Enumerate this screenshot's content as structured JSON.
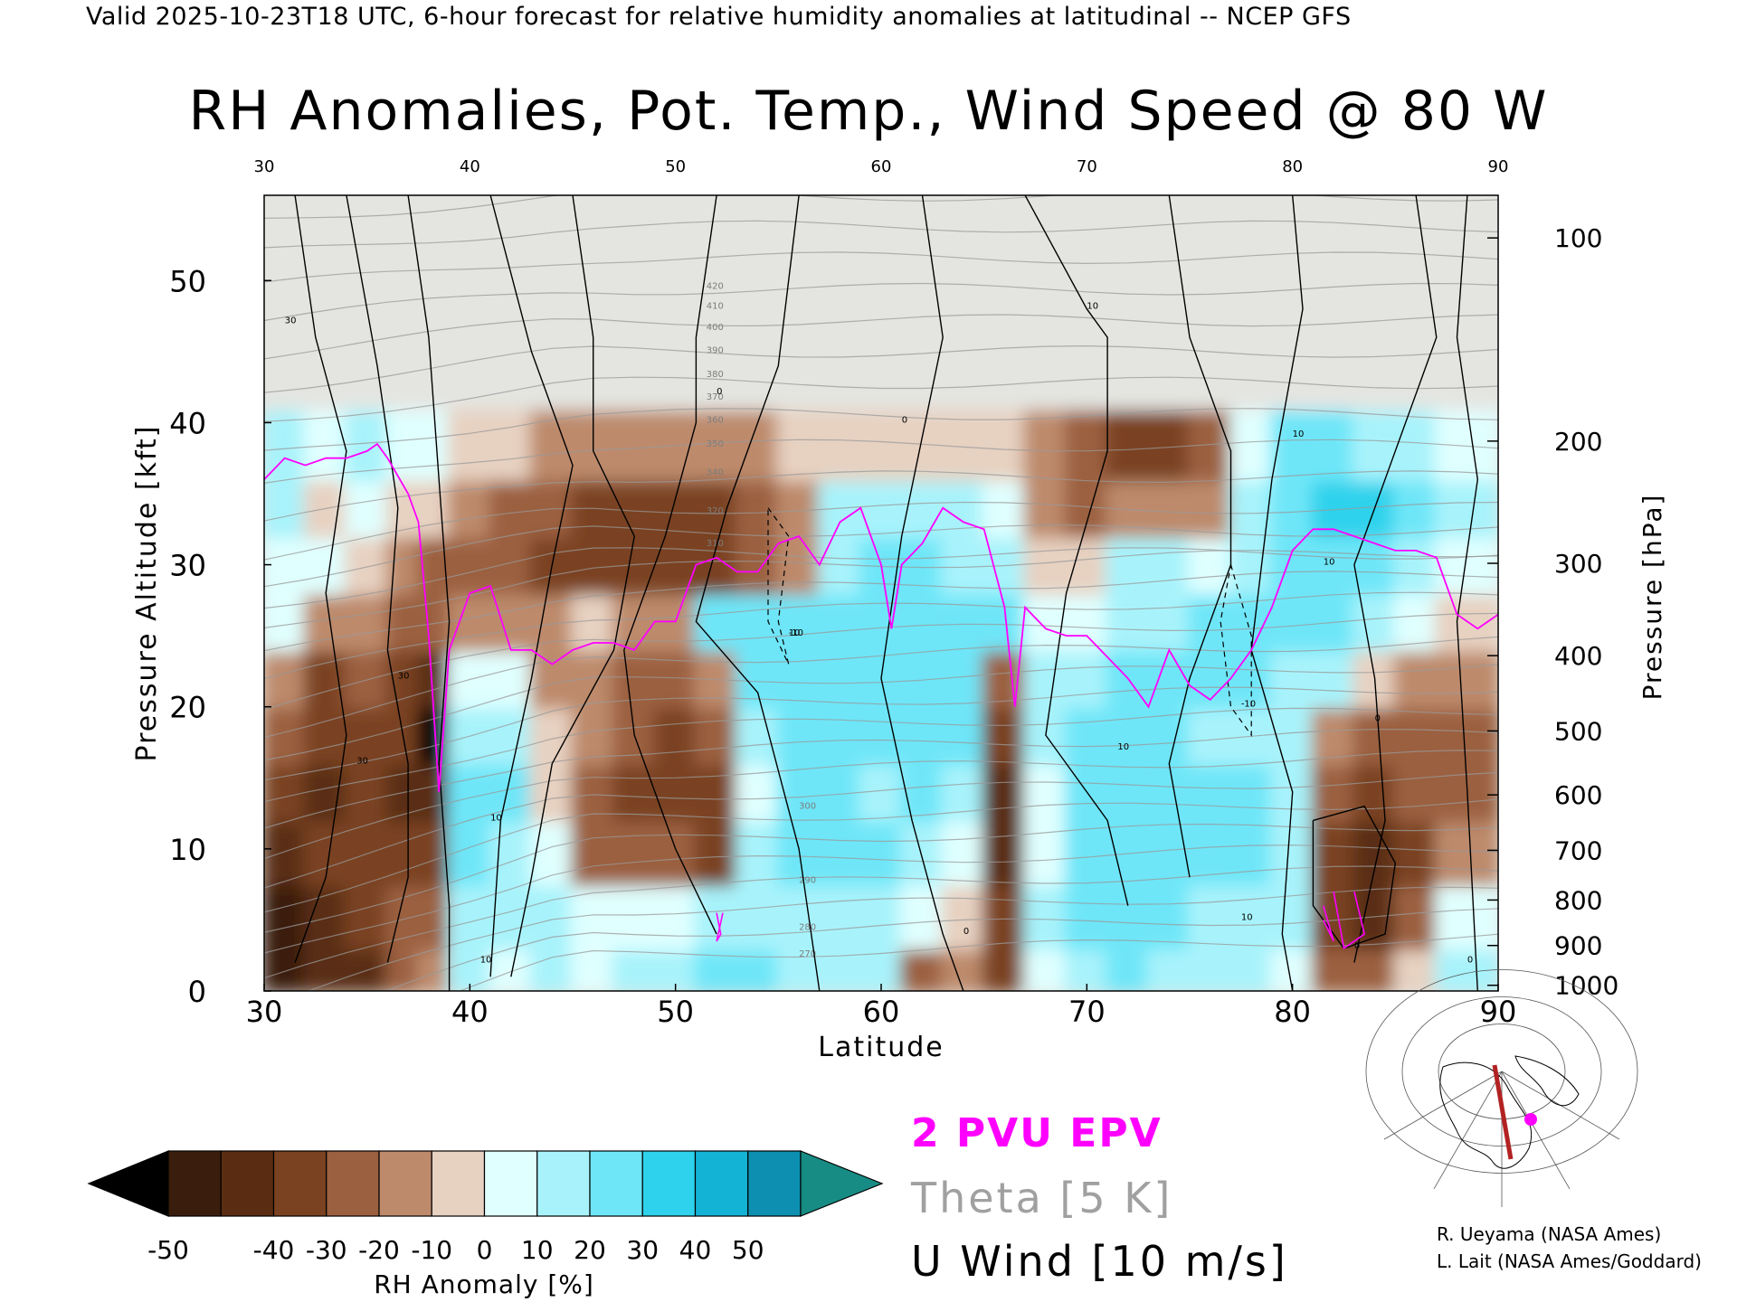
{
  "header": {
    "valid_line": "Valid 2025-10-23T18 UTC, 6-hour forecast for relative humidity anomalies at latitudinal -- NCEP GFS",
    "title": "RH Anomalies, Pot. Temp., Wind Speed @ 80 W"
  },
  "chart_data": {
    "type": "heatmap",
    "title": "RH Anomalies, Pot. Temp., Wind Speed @ 80 W",
    "xlabel": "Latitude",
    "ylabel": "Pressure Altitude [kft]",
    "y2label": "Pressure [hPa]",
    "xlim": [
      30,
      90
    ],
    "ylim": [
      0,
      56
    ],
    "x_ticks": [
      "30",
      "40",
      "50",
      "60",
      "70",
      "80",
      "90"
    ],
    "x_ticks_top": [
      "30",
      "40",
      "50",
      "60",
      "70",
      "80",
      "90"
    ],
    "y_ticks": [
      "0",
      "10",
      "20",
      "30",
      "40",
      "50"
    ],
    "pressure_ticks": [
      {
        "label": "100",
        "kft": 53.0
      },
      {
        "label": "200",
        "kft": 38.7
      },
      {
        "label": "300",
        "kft": 30.1
      },
      {
        "label": "400",
        "kft": 23.6
      },
      {
        "label": "500",
        "kft": 18.3
      },
      {
        "label": "600",
        "kft": 13.8
      },
      {
        "label": "700",
        "kft": 9.9
      },
      {
        "label": "800",
        "kft": 6.4
      },
      {
        "label": "900",
        "kft": 3.2
      },
      {
        "label": "1000",
        "kft": 0.4
      }
    ],
    "theta_levels_labeled": [
      "420",
      "410",
      "400",
      "390",
      "380",
      "370",
      "360",
      "350",
      "340",
      "320",
      "310",
      "300",
      "290",
      "280",
      "270"
    ],
    "rh_anomaly_columns": [
      {
        "lat": 31,
        "rh": [
          -45,
          -48,
          -38,
          -30,
          -12,
          -10,
          18,
          12,
          22,
          28,
          5,
          0
        ]
      },
      {
        "lat": 33,
        "rh": [
          -40,
          -35,
          -30,
          -35,
          -30,
          -28,
          -10,
          10,
          5,
          18,
          10,
          0
        ]
      },
      {
        "lat": 35,
        "rh": [
          -35,
          -30,
          -25,
          -22,
          -25,
          -20,
          -5,
          0,
          10,
          25,
          10,
          0
        ]
      },
      {
        "lat": 37,
        "rh": [
          -15,
          -20,
          -30,
          -35,
          -30,
          -30,
          -15,
          -10,
          5,
          15,
          10,
          0
        ]
      },
      {
        "lat": 38,
        "rh": [
          -10,
          -15,
          -25,
          -40,
          -50,
          -40,
          -20,
          -15,
          5,
          10,
          5,
          0
        ]
      },
      {
        "lat": 40,
        "rh": [
          20,
          25,
          30,
          30,
          25,
          10,
          -5,
          -15,
          -10,
          5,
          0,
          0
        ]
      },
      {
        "lat": 42,
        "rh": [
          15,
          25,
          28,
          30,
          25,
          10,
          -10,
          -20,
          -15,
          0,
          0,
          0
        ]
      },
      {
        "lat": 44,
        "rh": [
          20,
          25,
          15,
          5,
          0,
          -5,
          -10,
          -25,
          -20,
          -5,
          0,
          0
        ]
      },
      {
        "lat": 46,
        "rh": [
          15,
          10,
          -15,
          -15,
          -10,
          -5,
          0,
          -25,
          -25,
          -10,
          0,
          0
        ]
      },
      {
        "lat": 48,
        "rh": [
          20,
          15,
          -20,
          -25,
          -20,
          -15,
          -10,
          -30,
          -28,
          -10,
          0,
          0
        ]
      },
      {
        "lat": 50,
        "rh": [
          25,
          15,
          -20,
          -30,
          -25,
          -15,
          -5,
          -30,
          -28,
          -10,
          0,
          0
        ]
      },
      {
        "lat": 52,
        "rh": [
          30,
          25,
          -25,
          -30,
          -20,
          -10,
          35,
          -25,
          -25,
          -10,
          0,
          0
        ]
      },
      {
        "lat": 54,
        "rh": [
          30,
          28,
          20,
          10,
          20,
          30,
          35,
          -20,
          -20,
          -5,
          0,
          0
        ]
      },
      {
        "lat": 56,
        "rh": [
          25,
          28,
          30,
          30,
          30,
          30,
          30,
          -10,
          -10,
          0,
          0,
          0
        ]
      },
      {
        "lat": 58,
        "rh": [
          25,
          28,
          30,
          30,
          35,
          30,
          30,
          25,
          20,
          0,
          0,
          0
        ]
      },
      {
        "lat": 60,
        "rh": [
          20,
          25,
          30,
          25,
          35,
          30,
          35,
          30,
          25,
          0,
          0,
          0
        ]
      },
      {
        "lat": 62,
        "rh": [
          -15,
          10,
          25,
          30,
          35,
          35,
          35,
          30,
          20,
          0,
          -5,
          0
        ]
      },
      {
        "lat": 64,
        "rh": [
          -10,
          5,
          15,
          25,
          30,
          30,
          30,
          25,
          20,
          0,
          -5,
          0
        ]
      },
      {
        "lat": 66,
        "rh": [
          -25,
          -30,
          -35,
          -40,
          -30,
          -15,
          30,
          25,
          15,
          0,
          -5,
          0
        ]
      },
      {
        "lat": 68,
        "rh": [
          15,
          20,
          10,
          15,
          25,
          20,
          10,
          0,
          -10,
          -5,
          -5,
          0
        ]
      },
      {
        "lat": 70,
        "rh": [
          25,
          30,
          30,
          30,
          30,
          25,
          10,
          0,
          -15,
          -20,
          -10,
          0
        ]
      },
      {
        "lat": 72,
        "rh": [
          30,
          30,
          35,
          35,
          35,
          30,
          25,
          20,
          -10,
          -30,
          -10,
          0
        ]
      },
      {
        "lat": 74,
        "rh": [
          25,
          30,
          35,
          30,
          30,
          30,
          25,
          20,
          -10,
          -25,
          -10,
          0
        ]
      },
      {
        "lat": 76,
        "rh": [
          25,
          28,
          30,
          30,
          25,
          30,
          30,
          15,
          -5,
          -15,
          -5,
          0
        ]
      },
      {
        "lat": 78,
        "rh": [
          20,
          25,
          30,
          30,
          25,
          30,
          30,
          25,
          20,
          10,
          0,
          0
        ]
      },
      {
        "lat": 80,
        "rh": [
          10,
          20,
          25,
          25,
          20,
          25,
          30,
          30,
          35,
          30,
          0,
          0
        ]
      },
      {
        "lat": 82,
        "rh": [
          -15,
          -25,
          -30,
          -20,
          -10,
          20,
          30,
          30,
          40,
          30,
          5,
          0
        ]
      },
      {
        "lat": 84,
        "rh": [
          -20,
          -40,
          -35,
          -30,
          -15,
          5,
          25,
          30,
          40,
          25,
          5,
          0
        ]
      },
      {
        "lat": 86,
        "rh": [
          5,
          -20,
          -25,
          -20,
          -15,
          -10,
          15,
          25,
          35,
          20,
          5,
          0
        ]
      },
      {
        "lat": 88,
        "rh": [
          20,
          15,
          -10,
          -15,
          -15,
          -10,
          5,
          15,
          25,
          15,
          0,
          0
        ]
      }
    ],
    "rh_anomaly_kft_levels": [
      1,
      5,
      10,
      14,
      18,
      22,
      26,
      30,
      34,
      38,
      44,
      52
    ],
    "pv2_tropopause": {
      "lat": [
        30,
        31,
        32,
        33,
        34,
        35,
        35.5,
        36,
        37,
        37.5,
        38,
        38.5,
        39,
        40,
        41,
        42,
        43,
        44,
        45,
        46,
        47,
        48,
        49,
        50,
        51,
        52,
        53,
        54,
        55,
        56,
        57,
        58,
        59,
        60,
        60.5,
        61,
        62,
        63,
        64,
        65,
        66,
        66.5,
        67,
        68,
        69,
        70,
        71,
        72,
        73,
        74,
        75,
        76,
        77,
        78,
        79,
        80,
        81,
        82,
        83,
        84,
        85,
        86,
        87,
        88,
        89,
        90
      ],
      "kft": [
        36,
        37.5,
        37,
        37.5,
        37.5,
        38,
        38.5,
        37.5,
        35,
        33,
        25,
        14,
        24,
        28,
        28.5,
        24,
        24,
        23,
        24,
        24.5,
        24.5,
        24,
        26,
        26,
        30,
        30.5,
        29.5,
        29.5,
        31.5,
        32,
        30,
        33,
        34,
        30,
        25.5,
        30,
        31.5,
        34,
        33,
        32.5,
        27,
        20,
        27,
        25.5,
        25,
        25,
        23.5,
        22,
        20,
        24,
        21.5,
        20.5,
        22,
        24,
        27,
        31,
        32.5,
        32.5,
        32,
        31.5,
        31,
        31,
        30.5,
        26.5,
        25.5,
        26.5
      ]
    },
    "u_wind_contour_labels": [
      "30",
      "30",
      "30",
      "10",
      "10",
      "10",
      "0",
      "0",
      "0",
      "10",
      "10",
      "10",
      "10",
      "10",
      "0",
      "0",
      "0",
      "-10",
      "-10"
    ],
    "colorbar": {
      "label": "RH Anomaly [%]",
      "ticks": [
        "-50",
        "-40",
        "-30",
        "-20",
        "-10",
        "0",
        "10",
        "20",
        "30",
        "40",
        "50"
      ],
      "colors": [
        "#000000",
        "#3a1d0c",
        "#5a2d12",
        "#7a4220",
        "#9b6040",
        "#bd8a6c",
        "#e7d1c1",
        "#e0ffff",
        "#a8f3fb",
        "#6ee6f8",
        "#2fd2ec",
        "#13b3d6",
        "#0c8fb0",
        "#178c84"
      ]
    },
    "legend": [
      {
        "label": "2 PVU EPV",
        "color": "#ff00ff"
      },
      {
        "label": "Theta [5 K]",
        "color": "#a0a0a0"
      },
      {
        "label": "U Wind [10 m/s]",
        "color": "#000000"
      }
    ]
  },
  "inset_map": {
    "description_marker_color": "#ff00ff",
    "section_line_color": "#b22222"
  },
  "credits": {
    "line1": "R. Ueyama (NASA Ames)",
    "line2": "L. Lait (NASA Ames/Goddard)"
  }
}
